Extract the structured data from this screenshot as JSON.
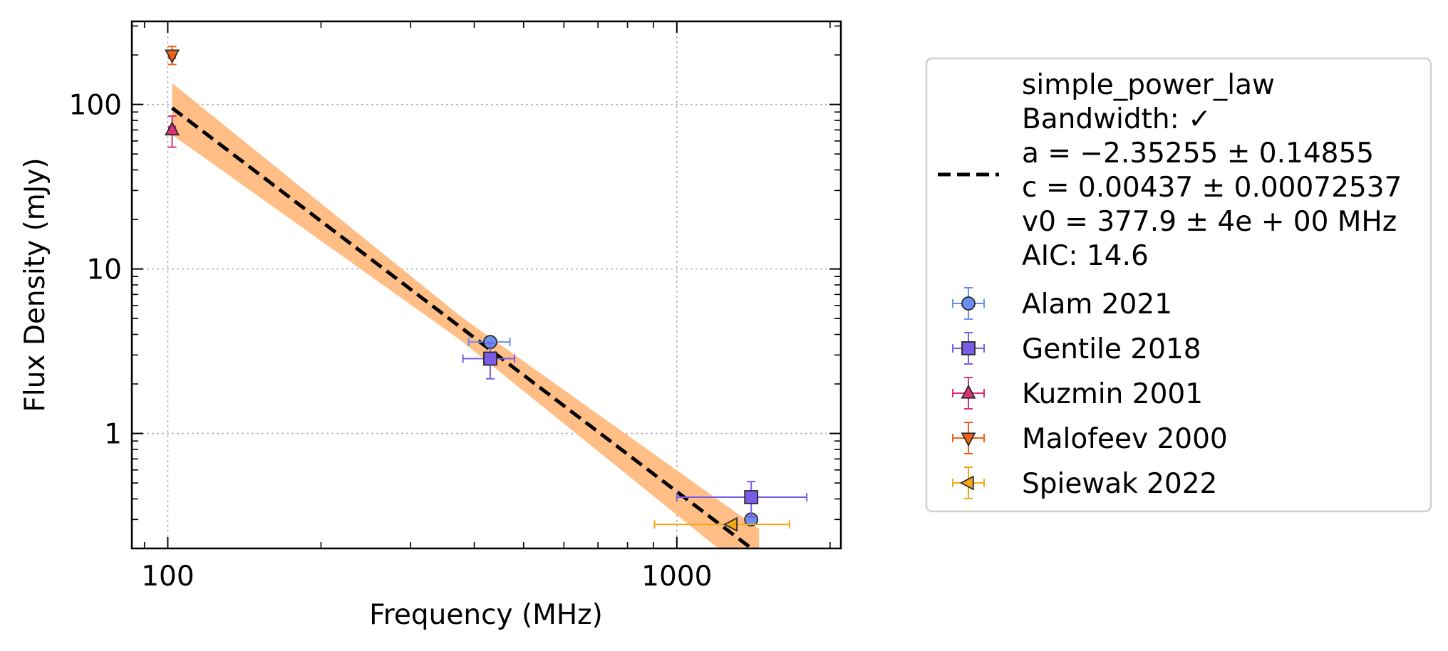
{
  "chart_data": {
    "type": "scatter",
    "title": "",
    "xlabel": "Frequency (MHz)",
    "ylabel": "Flux Density (mJy)",
    "xscale": "log",
    "yscale": "log",
    "xlim": [
      85,
      2100
    ],
    "ylim": [
      0.2,
      320
    ],
    "x_ticks": [
      {
        "value": 100,
        "label": "100"
      },
      {
        "value": 1000,
        "label": "1000"
      }
    ],
    "y_ticks": [
      {
        "value": 1,
        "label": "1"
      },
      {
        "value": 10,
        "label": "10"
      },
      {
        "value": 100,
        "label": "100"
      }
    ],
    "grid": true,
    "legend_position": "outside-right",
    "fit": {
      "model": "simple_power_law",
      "legend_lines": [
        "simple_power_law",
        "Bandwidth: ✓",
        "a = −2.35255 ± 0.14855",
        "c = 0.00437 ± 0.00072537",
        "v0 = 377.9 ± 4e + 00 MHz",
        "AIC: 14.6"
      ],
      "a": -2.35255,
      "a_err": 0.14855,
      "c": 0.00437,
      "c_err": 0.00072537,
      "v0": 377.9,
      "x_range": [
        102,
        1450
      ],
      "line_color": "#000000",
      "band_color": "#ffbe85"
    },
    "series": [
      {
        "name": "Alam 2021",
        "marker": "circle",
        "color": "#6b8ff0",
        "edge": "#2a2a2a",
        "points": [
          {
            "x": 430,
            "y": 3.6,
            "xerr": [
              40,
              40
            ],
            "yerr": [
              0.15,
              0.15
            ]
          },
          {
            "x": 1400,
            "y": 0.3,
            "xerr": [
              0,
              0
            ],
            "yerr": [
              0.01,
              0.01
            ]
          }
        ]
      },
      {
        "name": "Gentile 2018",
        "marker": "square",
        "color": "#7a5ce6",
        "edge": "#2a2a2a",
        "points": [
          {
            "x": 430,
            "y": 2.85,
            "xerr": [
              50,
              50
            ],
            "yerr": [
              0.7,
              0.7
            ]
          },
          {
            "x": 1400,
            "y": 0.41,
            "xerr": [
              400,
              400
            ],
            "yerr": [
              0.1,
              0.1
            ]
          }
        ]
      },
      {
        "name": "Kuzmin 2001",
        "marker": "triangle-up",
        "color": "#d8327a",
        "edge": "#2a2a2a",
        "points": [
          {
            "x": 102,
            "y": 70,
            "xerr": [
              1.5,
              1.5
            ],
            "yerr": [
              15,
              15
            ]
          }
        ]
      },
      {
        "name": "Malofeev 2000",
        "marker": "triangle-down",
        "color": "#f06018",
        "edge": "#2a2a2a",
        "points": [
          {
            "x": 102,
            "y": 200,
            "xerr": [
              1.5,
              1.5
            ],
            "yerr": [
              25,
              25
            ]
          }
        ]
      },
      {
        "name": "Spiewak 2022",
        "marker": "triangle-left",
        "color": "#f5a71a",
        "edge": "#2a2a2a",
        "points": [
          {
            "x": 1284,
            "y": 0.28,
            "xerr": [
              380,
              380
            ],
            "yerr": [
              0.005,
              0.005
            ]
          }
        ]
      }
    ]
  }
}
